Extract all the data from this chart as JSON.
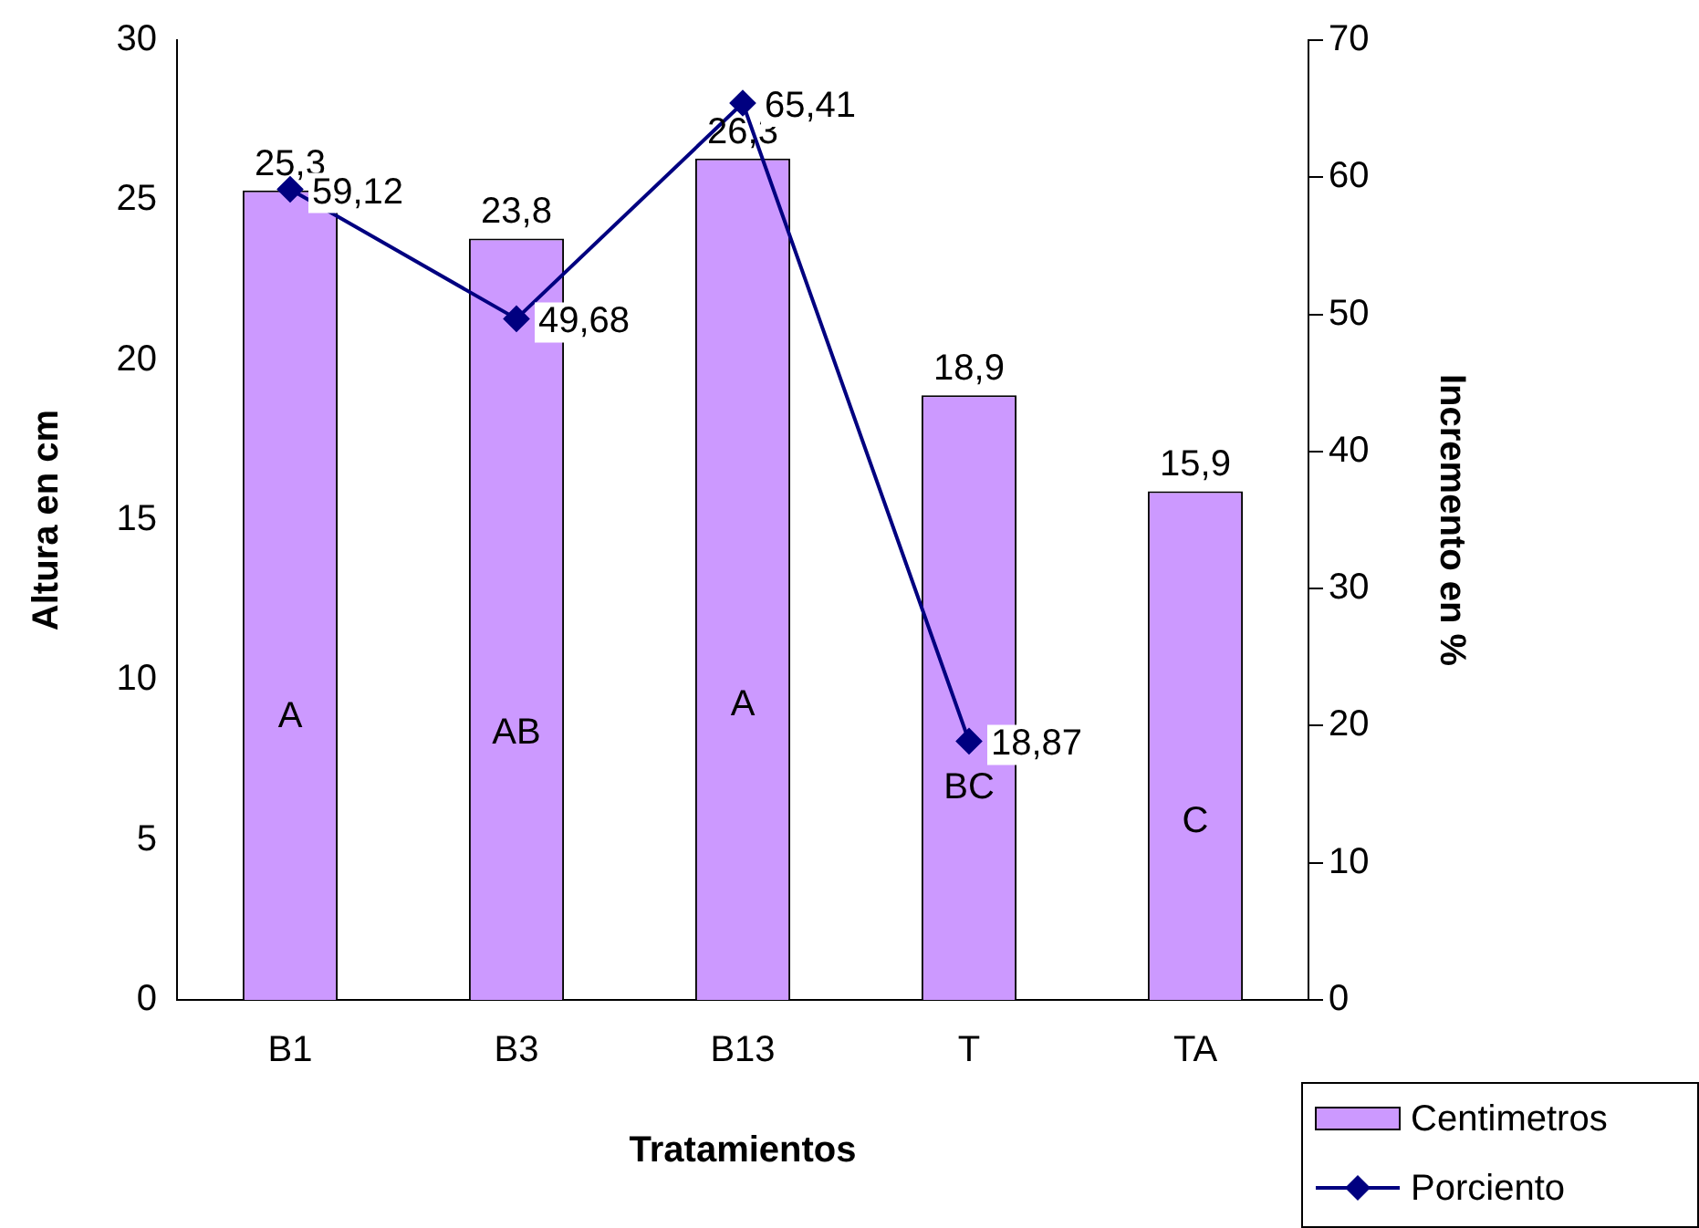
{
  "chart_data": {
    "type": "bar",
    "xlabel": "Tratamientos",
    "ylabel": "Altura en cm",
    "y2label": "Incremento en %",
    "categories": [
      "B1",
      "B3",
      "B13",
      "T",
      "TA"
    ],
    "series": [
      {
        "name": "Centimetros",
        "color": "#cc99ff",
        "values": [
          25.3,
          23.8,
          26.3,
          18.9,
          15.9
        ],
        "value_labels": [
          "25,3",
          "23,8",
          "26,3",
          "18,9",
          "15,9"
        ]
      },
      {
        "name": "Porciento",
        "type": "line",
        "axis": "y2",
        "color": "#000080",
        "marker": "diamond",
        "values": [
          59.12,
          49.68,
          65.41,
          18.87,
          null
        ],
        "value_labels": [
          "59,12",
          "49,68",
          "65,41",
          "18,87",
          null
        ]
      }
    ],
    "ylim": [
      0,
      30
    ],
    "yticks": [
      0,
      5,
      10,
      15,
      20,
      25,
      30
    ],
    "y2lim": [
      0,
      70
    ],
    "y2ticks": [
      0,
      10,
      20,
      30,
      40,
      50,
      60,
      70
    ],
    "grid": false,
    "legend": "bottom right",
    "annotations": [
      "A",
      "AB",
      "A",
      "BC",
      "C"
    ]
  }
}
